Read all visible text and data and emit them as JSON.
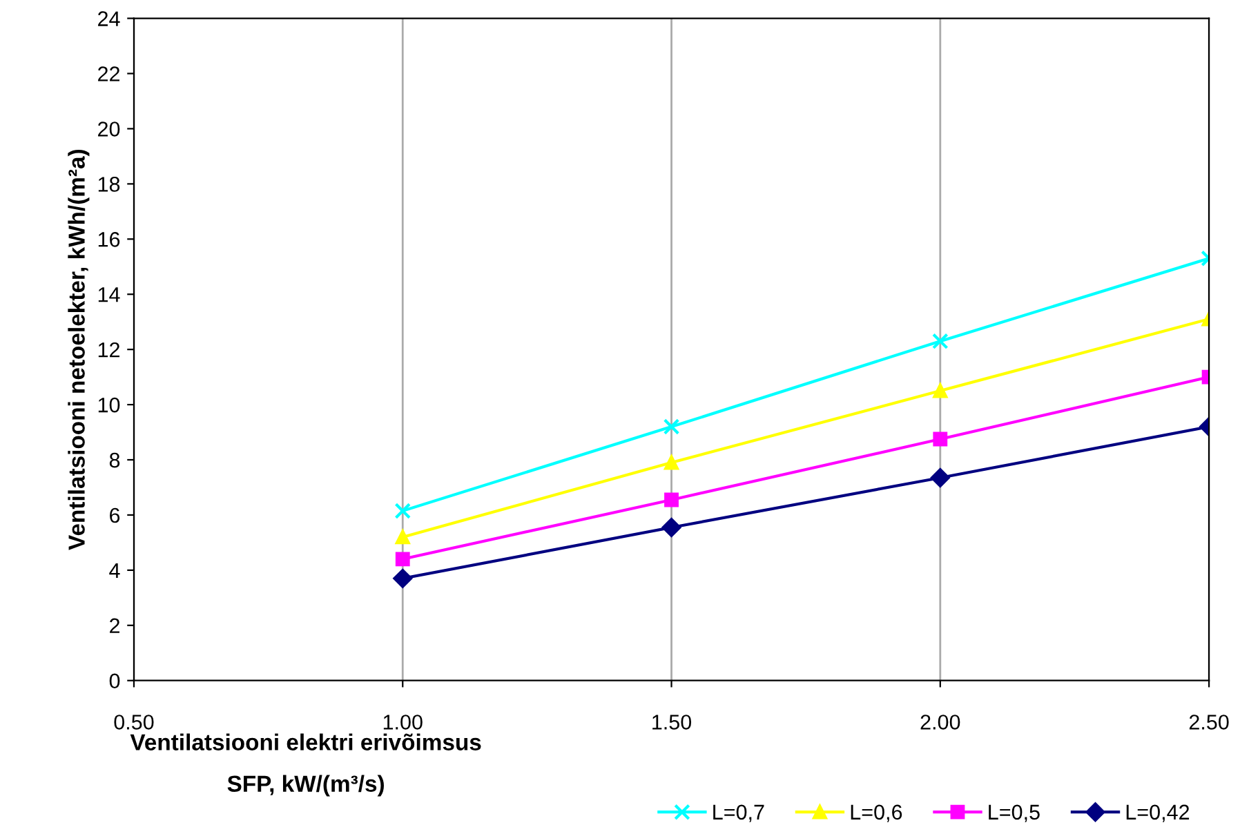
{
  "chart_data": {
    "type": "line",
    "xlabel": "Ventilatsiooni elektri erivõimsus\nSFP, kW/(m³/s)",
    "ylabel": "Ventilatsiooni netoelekter, kWh/(m²a)",
    "x": [
      1.0,
      1.5,
      2.0,
      2.5
    ],
    "series": [
      {
        "name": "L=0,7",
        "color": "#00ffff",
        "marker": "cross",
        "values": [
          6.15,
          9.2,
          12.3,
          15.3
        ]
      },
      {
        "name": "L=0,6",
        "color": "#ffff00",
        "marker": "triangle",
        "values": [
          5.2,
          7.9,
          10.5,
          13.1
        ]
      },
      {
        "name": "L=0,5",
        "color": "#ff00ff",
        "marker": "square",
        "values": [
          4.4,
          6.55,
          8.75,
          11.0
        ]
      },
      {
        "name": "L=0,42",
        "color": "#000080",
        "marker": "diamond",
        "values": [
          3.7,
          5.55,
          7.35,
          9.2
        ]
      }
    ],
    "xlim": [
      0.5,
      2.5
    ],
    "xticks": [
      {
        "value": 0.5,
        "label": "0.50"
      },
      {
        "value": 1.0,
        "label": "1.00"
      },
      {
        "value": 1.5,
        "label": "1.50"
      },
      {
        "value": 2.0,
        "label": "2.00"
      },
      {
        "value": 2.5,
        "label": "2.50"
      }
    ],
    "ylim": [
      0,
      24
    ],
    "yticks": [
      0,
      2,
      4,
      6,
      8,
      10,
      12,
      14,
      16,
      18,
      20,
      22,
      24
    ],
    "grid": "x",
    "legend": "bottom right",
    "line_style": "solid"
  }
}
